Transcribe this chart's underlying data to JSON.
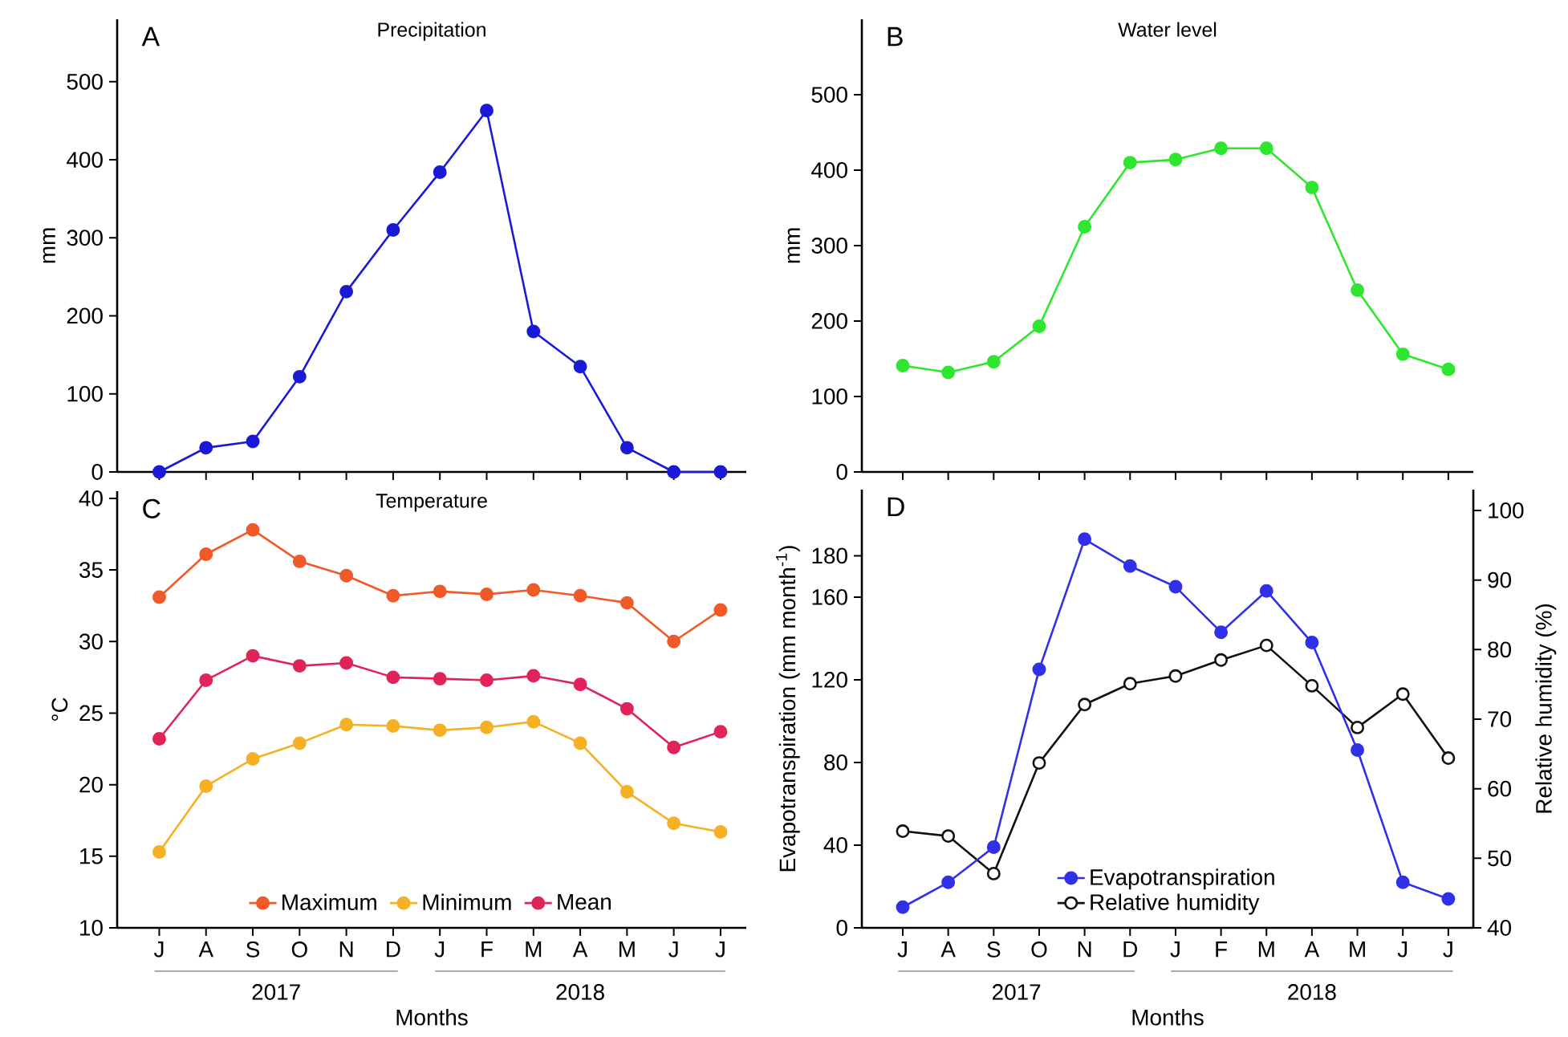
{
  "chart_data": [
    {
      "type": "line",
      "title": "Precipitation",
      "ylabel": "mm",
      "annotations": [
        "A"
      ],
      "categories": [
        null,
        null,
        null,
        null,
        null,
        null,
        null,
        null,
        null,
        null,
        null,
        null,
        null
      ],
      "marker": "circle",
      "ylim": [
        0,
        580
      ],
      "yticks": [
        0,
        100,
        200,
        300,
        400,
        500
      ],
      "series": [
        {
          "color": "#1a1ad6",
          "values": [
            0,
            31,
            39,
            122,
            231,
            310,
            384,
            463,
            180,
            135,
            31,
            0,
            0
          ]
        }
      ]
    },
    {
      "type": "line",
      "title": "Water level",
      "ylabel": "mm",
      "annotations": [
        "B"
      ],
      "categories": [
        null,
        null,
        null,
        null,
        null,
        null,
        null,
        null,
        null,
        null,
        null,
        null,
        null
      ],
      "marker": "circle",
      "ylim": [
        0,
        600
      ],
      "yticks": [
        0,
        100,
        200,
        300,
        400,
        500
      ],
      "series": [
        {
          "color": "#2ee62e",
          "values": [
            141,
            132,
            146,
            193,
            325,
            410,
            414,
            429,
            429,
            377,
            241,
            156,
            136
          ]
        }
      ]
    },
    {
      "type": "line",
      "title": "Temperature",
      "ylabel": "°C",
      "xlabel": "Months",
      "annotations": [
        "C",
        "2017",
        "2018"
      ],
      "categories": [
        "J",
        "A",
        "S",
        "O",
        "N",
        "D",
        "J",
        "F",
        "M",
        "A",
        "M",
        "J",
        "J"
      ],
      "marker": "circle",
      "legend": "bottom",
      "ylim": [
        10,
        40.5
      ],
      "yticks": [
        10,
        15,
        20,
        25,
        30,
        35,
        40
      ],
      "series": [
        {
          "name": "Maximum",
          "color": "#f05a28",
          "values": [
            33.1,
            36.1,
            37.8,
            35.6,
            34.6,
            33.2,
            33.5,
            33.3,
            33.6,
            33.2,
            32.7,
            30.0,
            32.2
          ]
        },
        {
          "name": "Minimum",
          "color": "#f5b025",
          "values": [
            15.3,
            19.9,
            21.8,
            22.9,
            24.2,
            24.1,
            23.8,
            24.0,
            24.4,
            22.9,
            19.5,
            17.3,
            16.7
          ]
        },
        {
          "name": "Mean",
          "color": "#e0245a",
          "values": [
            23.2,
            27.3,
            29.0,
            28.3,
            28.5,
            27.5,
            27.4,
            27.3,
            27.6,
            27.0,
            25.3,
            22.6,
            23.7
          ]
        }
      ]
    },
    {
      "type": "line",
      "ylabel": "Evapotranspiration (mm month$^{-1}$)",
      "y2label": "Relative humidity (%)",
      "xlabel": "Months",
      "annotations": [
        "D",
        "2017",
        "2018"
      ],
      "categories": [
        "J",
        "A",
        "S",
        "O",
        "N",
        "D",
        "J",
        "F",
        "M",
        "A",
        "M",
        "J",
        "J"
      ],
      "marker": "circle",
      "legend": "bottom",
      "ylim": [
        0,
        212
      ],
      "yticks": [
        0,
        40,
        80,
        120,
        160,
        180
      ],
      "y2lim": [
        40,
        103
      ],
      "y2ticks": [
        40,
        50,
        60,
        70,
        80,
        90,
        100
      ],
      "series": [
        {
          "name": "Evapotranspiration",
          "color": "#3030e8",
          "values": [
            10,
            22,
            39,
            125,
            188,
            175,
            165,
            143,
            163,
            138,
            86,
            22,
            14
          ]
        },
        {
          "name": "Relative humidity",
          "color": "#111111",
          "axis": "y2",
          "values": [
            53.9,
            53.2,
            47.8,
            63.7,
            72.1,
            75.1,
            76.2,
            78.5,
            80.6,
            74.8,
            68.8,
            73.6,
            64.4
          ]
        }
      ]
    }
  ]
}
